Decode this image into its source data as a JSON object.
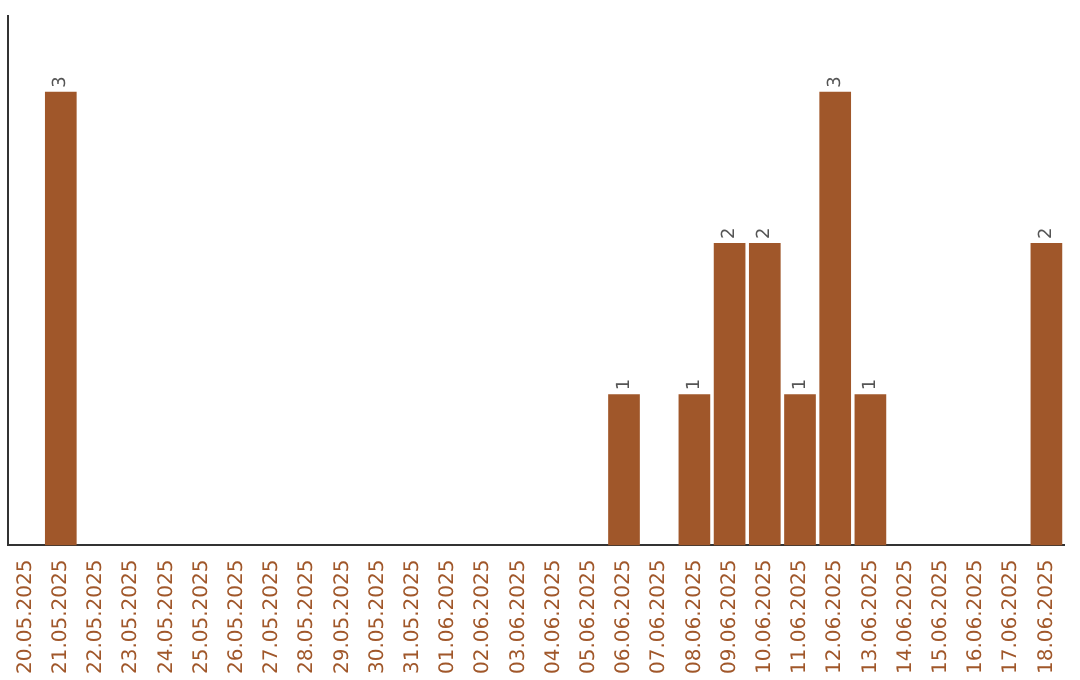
{
  "chart_data": {
    "type": "bar",
    "categories": [
      "20.05.2025",
      "21.05.2025",
      "22.05.2025",
      "23.05.2025",
      "24.05.2025",
      "25.05.2025",
      "26.05.2025",
      "27.05.2025",
      "28.05.2025",
      "29.05.2025",
      "30.05.2025",
      "31.05.2025",
      "01.06.2025",
      "02.06.2025",
      "03.06.2025",
      "04.06.2025",
      "05.06.2025",
      "06.06.2025",
      "07.06.2025",
      "08.06.2025",
      "09.06.2025",
      "10.06.2025",
      "11.06.2025",
      "12.06.2025",
      "13.06.2025",
      "14.06.2025",
      "15.06.2025",
      "16.06.2025",
      "17.06.2025",
      "18.06.2025"
    ],
    "values": [
      0,
      3,
      0,
      0,
      0,
      0,
      0,
      0,
      0,
      0,
      0,
      0,
      0,
      0,
      0,
      0,
      0,
      1,
      0,
      1,
      2,
      2,
      1,
      3,
      1,
      0,
      0,
      0,
      0,
      2
    ],
    "value_labels": [
      null,
      "3",
      null,
      null,
      null,
      null,
      null,
      null,
      null,
      null,
      null,
      null,
      null,
      null,
      null,
      null,
      null,
      "1",
      null,
      "1",
      "2",
      "2",
      "1",
      "3",
      "1",
      null,
      null,
      null,
      null,
      "2"
    ],
    "color": "#a0572a",
    "grid": false,
    "legend": false
  }
}
